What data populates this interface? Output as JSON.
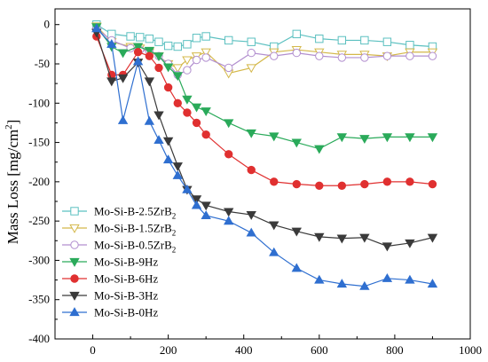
{
  "chart_data": {
    "type": "line",
    "title": "",
    "xlabel": "",
    "ylabel": "Mass Loss [mg/cm2]",
    "ylabel_parts": {
      "main": "Mass Loss [mg/cm",
      "sup": "2",
      "end": "]"
    },
    "xlim": [
      -100,
      1000
    ],
    "ylim": [
      -400,
      20
    ],
    "x_ticks": [
      0,
      200,
      400,
      600,
      800,
      1000
    ],
    "y_ticks": [
      0,
      -50,
      -100,
      -150,
      -200,
      -250,
      -300,
      -350,
      -400
    ],
    "x_tick_labels": [
      "0",
      "200",
      "400",
      "600",
      "800",
      "1000"
    ],
    "y_tick_labels": [
      "0",
      "-50",
      "-100",
      "-150",
      "-200",
      "-250",
      "-300",
      "-350",
      "-400"
    ],
    "grid": false,
    "legend_position": "bottom-left",
    "series": [
      {
        "name": "Mo-Si-B-2.5ZrB2",
        "legend": {
          "main": "Mo-Si-B-2.5ZrB",
          "sub": "2"
        },
        "color": "#5bc0c0",
        "marker": "square",
        "filled": false,
        "x": [
          10,
          50,
          100,
          125,
          150,
          175,
          200,
          225,
          250,
          275,
          300,
          360,
          420,
          480,
          540,
          600,
          660,
          720,
          780,
          840,
          900
        ],
        "y": [
          0,
          -12,
          -15,
          -16,
          -18,
          -22,
          -27,
          -28,
          -25,
          -17,
          -15,
          -20,
          -22,
          -28,
          -12,
          -18,
          -20,
          -20,
          -22,
          -26,
          -28
        ]
      },
      {
        "name": "Mo-Si-B-1.5ZrB2",
        "legend": {
          "main": "Mo-Si-B-1.5ZrB",
          "sub": "2"
        },
        "color": "#d4b84a",
        "marker": "triangle-down",
        "filled": false,
        "x": [
          10,
          50,
          100,
          125,
          150,
          175,
          200,
          225,
          250,
          275,
          300,
          360,
          420,
          480,
          540,
          600,
          660,
          720,
          780,
          840,
          900
        ],
        "y": [
          -2,
          -22,
          -28,
          -30,
          -35,
          -40,
          -50,
          -55,
          -45,
          -40,
          -35,
          -62,
          -55,
          -35,
          -32,
          -35,
          -38,
          -38,
          -40,
          -35,
          -35
        ]
      },
      {
        "name": "Mo-Si-B-0.5ZrB2",
        "legend": {
          "main": "Mo-Si-B-0.5ZrB",
          "sub": "2"
        },
        "color": "#b28fcf",
        "marker": "circle",
        "filled": false,
        "x": [
          10,
          50,
          100,
          125,
          150,
          175,
          200,
          225,
          250,
          275,
          300,
          360,
          420,
          480,
          540,
          600,
          660,
          720,
          780,
          840,
          900
        ],
        "y": [
          -5,
          -20,
          -30,
          -32,
          -34,
          -40,
          -50,
          -64,
          -58,
          -45,
          -42,
          -55,
          -36,
          -40,
          -36,
          -40,
          -42,
          -42,
          -40,
          -40,
          -40
        ]
      },
      {
        "name": "Mo-Si-B-9Hz",
        "legend": {
          "main": "Mo-Si-B-9Hz"
        },
        "color": "#2aaa5a",
        "marker": "triangle-down",
        "filled": true,
        "x": [
          10,
          50,
          80,
          120,
          150,
          175,
          200,
          225,
          250,
          275,
          300,
          360,
          420,
          480,
          540,
          600,
          660,
          720,
          780,
          840,
          900
        ],
        "y": [
          -3,
          -28,
          -36,
          -28,
          -33,
          -40,
          -54,
          -65,
          -95,
          -105,
          -110,
          -125,
          -138,
          -142,
          -150,
          -158,
          -143,
          -145,
          -143,
          -143,
          -143
        ]
      },
      {
        "name": "Mo-Si-B-6Hz",
        "legend": {
          "main": "Mo-Si-B-6Hz"
        },
        "color": "#e03030",
        "marker": "circle",
        "filled": true,
        "x": [
          10,
          50,
          80,
          120,
          150,
          175,
          200,
          225,
          250,
          275,
          300,
          360,
          420,
          480,
          540,
          600,
          660,
          720,
          780,
          840,
          900
        ],
        "y": [
          -15,
          -64,
          -64,
          -35,
          -40,
          -55,
          -80,
          -100,
          -112,
          -125,
          -140,
          -165,
          -185,
          -200,
          -203,
          -205,
          -205,
          -203,
          -200,
          -200,
          -203
        ]
      },
      {
        "name": "Mo-Si-B-3Hz",
        "legend": {
          "main": "Mo-Si-B-3Hz"
        },
        "color": "#3a3a3a",
        "marker": "triangle-down",
        "filled": true,
        "x": [
          10,
          50,
          80,
          120,
          150,
          175,
          200,
          225,
          250,
          275,
          300,
          360,
          420,
          480,
          540,
          600,
          660,
          720,
          780,
          840,
          900
        ],
        "y": [
          -10,
          -72,
          -68,
          -48,
          -72,
          -115,
          -148,
          -180,
          -210,
          -222,
          -230,
          -238,
          -242,
          -255,
          -263,
          -270,
          -272,
          -271,
          -282,
          -278,
          -271
        ]
      },
      {
        "name": "Mo-Si-B-0Hz",
        "legend": {
          "main": "Mo-Si-B-0Hz"
        },
        "color": "#2f6fd0",
        "marker": "triangle-up",
        "filled": true,
        "x": [
          10,
          50,
          80,
          120,
          150,
          175,
          200,
          225,
          250,
          275,
          300,
          360,
          420,
          480,
          540,
          600,
          660,
          720,
          780,
          840,
          900
        ],
        "y": [
          -5,
          -25,
          -122,
          -47,
          -123,
          -147,
          -172,
          -192,
          -210,
          -230,
          -243,
          -250,
          -265,
          -290,
          -310,
          -325,
          -330,
          -333,
          -323,
          -325,
          -330
        ]
      }
    ]
  }
}
